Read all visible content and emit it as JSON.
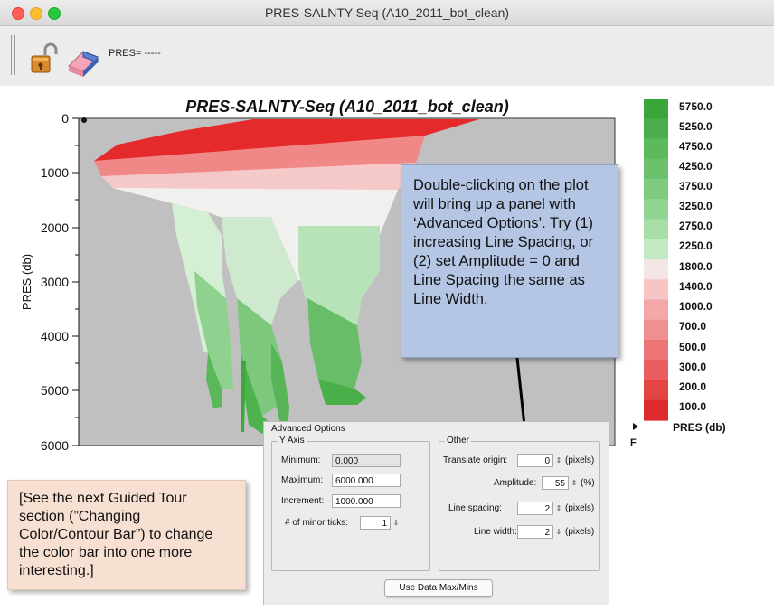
{
  "window": {
    "title": "PRES-SALNTY-Seq (A10_2011_bot_clean)"
  },
  "toolbar": {
    "pres_readout": "PRES= -----",
    "lock_icon": "unlocked-padlock-icon",
    "eraser_icon": "eraser-icon"
  },
  "plot": {
    "title": "PRES-SALNTY-Seq (A10_2011_bot_clean)",
    "y_label": "PRES (db)",
    "y_ticks": [
      "0",
      "1000",
      "2000",
      "3000",
      "4000",
      "5000",
      "6000"
    ],
    "background_color": "#c0c0c0"
  },
  "colorbar": {
    "labels": [
      "5750.0",
      "5250.0",
      "4750.0",
      "4250.0",
      "3750.0",
      "3250.0",
      "2750.0",
      "2250.0",
      "1800.0",
      "1400.0",
      "1000.0",
      "700.0",
      "500.0",
      "300.0",
      "200.0",
      "100.0"
    ],
    "colors": [
      "#3aa63a",
      "#4aae4a",
      "#5cb95c",
      "#6cc26c",
      "#7ecb7e",
      "#91d491",
      "#a6dea6",
      "#c2e9c2",
      "#f5e6e6",
      "#f6c6c6",
      "#f3a9a9",
      "#f08f8f",
      "#ec7676",
      "#e85d5d",
      "#e44444",
      "#de2a2a"
    ],
    "var_label": "PRES (db)",
    "extra_label": "F"
  },
  "callout": {
    "text": "Double-clicking on the plot will bring up a panel with ‘Advanced Options’. Try (1) increasing Line Spacing, or (2) set Amplitude = 0 and Line Spacing the same as Line Width."
  },
  "note": {
    "text": "[See the next Guided Tour section (”Changing Color/Contour Bar”) to change the color bar into one more interesting.]"
  },
  "advanced_options": {
    "title": "Advanced Options",
    "y_axis": {
      "title": "Y Axis",
      "minimum_label": "Minimum:",
      "minimum_value": "0.000",
      "maximum_label": "Maximum:",
      "maximum_value": "6000.000",
      "increment_label": "Increment:",
      "increment_value": "1000.000",
      "minor_ticks_label": "# of minor ticks:",
      "minor_ticks_value": "1"
    },
    "other": {
      "title": "Other",
      "translate_label": "Translate origin:",
      "translate_value": "0",
      "translate_units": "(pixels)",
      "amplitude_label": "Amplitude:",
      "amplitude_value": "55",
      "amplitude_units": "(%)",
      "line_spacing_label": "Line spacing:",
      "line_spacing_value": "2",
      "line_spacing_units": "(pixels)",
      "line_width_label": "Line width:",
      "line_width_value": "2",
      "line_width_units": "(pixels)"
    },
    "use_data_button": "Use Data Max/Mins"
  }
}
